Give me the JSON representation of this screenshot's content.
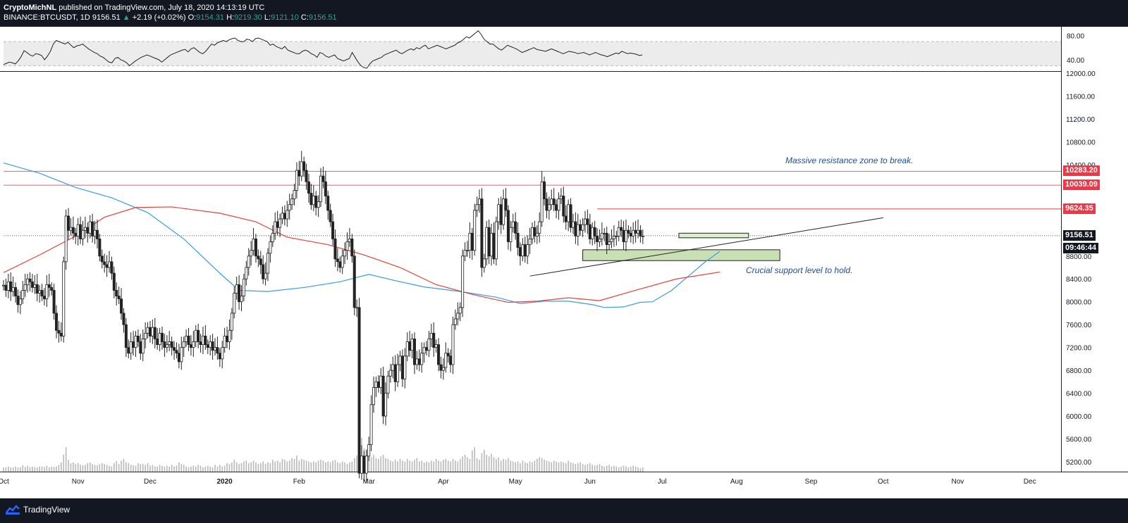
{
  "header": {
    "author": "CryptoMichNL",
    "published": " published on TradingView.com, July 18, 2020 14:13:19 UTC",
    "symbol": "BINANCE:BTCUSDT, 1D",
    "last": "9156.51",
    "change": "+2.19 (+0.02%)",
    "o_label": "O:",
    "o": "9154.31",
    "h_label": "H:",
    "h": "9219.30",
    "l_label": "L:",
    "l": "9121.10",
    "c_label": "C:",
    "c": "9156.51"
  },
  "footer": {
    "brand": "TradingView",
    "logo_icon": "tradingview-logo-icon"
  },
  "colors": {
    "bg_dark": "#131722",
    "up": "#26a69a",
    "ma_blue": "#3a9be8",
    "ma_red": "#e5423b",
    "resistance": "#f45b69",
    "support_zone": "#c8e0b4",
    "annotation": "#1f4e9c"
  },
  "chart_data": [
    {
      "type": "line",
      "title": "RSI",
      "y_ticks": [
        "80.00",
        "40.00"
      ],
      "ylim": [
        20,
        90
      ],
      "band": [
        30,
        70
      ],
      "values": [
        32,
        34,
        36,
        35,
        33,
        38,
        45,
        55,
        52,
        48,
        46,
        50,
        49,
        47,
        40,
        46,
        54,
        66,
        72,
        70,
        68,
        66,
        69,
        64,
        60,
        63,
        64,
        66,
        62,
        58,
        55,
        52,
        50,
        46,
        44,
        40,
        36,
        35,
        42,
        44,
        40,
        38,
        35,
        30,
        34,
        38,
        41,
        44,
        46,
        48,
        46,
        44,
        42,
        40,
        36,
        40,
        44,
        48,
        50,
        52,
        54,
        56,
        57,
        53,
        58,
        60,
        56,
        52,
        50,
        54,
        60,
        66,
        64,
        68,
        70,
        72,
        70,
        73,
        75,
        76,
        72,
        70,
        70,
        74,
        73,
        70,
        75,
        76,
        74,
        72,
        70,
        64,
        66,
        62,
        60,
        58,
        62,
        56,
        54,
        52,
        50,
        50,
        54,
        56,
        54,
        50,
        48,
        44,
        52,
        50,
        46,
        44,
        46,
        48,
        42,
        40,
        38,
        40,
        42,
        52,
        44,
        36,
        30,
        27,
        26,
        33,
        38,
        40,
        42,
        44,
        48,
        50,
        52,
        54,
        56,
        52,
        50,
        53,
        56,
        58,
        56,
        60,
        58,
        62,
        64,
        58,
        60,
        62,
        64,
        62,
        60,
        58,
        60,
        62,
        64,
        68,
        70,
        74,
        78,
        76,
        80,
        84,
        88,
        82,
        74,
        70,
        66,
        66,
        62,
        58,
        56,
        60,
        64,
        62,
        60,
        58,
        55,
        52,
        54,
        56,
        58,
        60,
        57,
        56,
        55,
        54,
        56,
        58,
        56,
        54,
        52,
        50,
        52,
        54,
        53,
        52,
        50,
        51,
        52,
        50,
        48,
        50,
        52,
        50,
        48,
        47,
        45,
        47,
        49,
        51,
        50,
        54,
        52,
        50,
        51,
        50,
        49,
        47,
        48
      ]
    },
    {
      "type": "candlestick",
      "symbol": "BINANCE:BTCUSDT",
      "interval": "1D",
      "x_tick_labels": [
        "Oct",
        "Nov",
        "Dec",
        "2020",
        "Feb",
        "Mar",
        "Apr",
        "May",
        "Jun",
        "Jul",
        "Aug",
        "Sep",
        "Oct",
        "Nov",
        "Dec"
      ],
      "x_tick_days": [
        0,
        31,
        61,
        92,
        123,
        152,
        183,
        213,
        244,
        274,
        305,
        336,
        366,
        397,
        427
      ],
      "x_range_days": [
        0,
        440
      ],
      "y_ticks": [
        "12000.00",
        "11600.00",
        "11200.00",
        "10800.00",
        "10400.00",
        "8800.00",
        "8400.00",
        "8000.00",
        "7600.00",
        "7200.00",
        "6800.00",
        "6400.00",
        "6000.00",
        "5600.00",
        "5200.00"
      ],
      "ylim": [
        5000,
        12200
      ],
      "closes": [
        8290,
        8200,
        8350,
        8180,
        8250,
        8100,
        7950,
        8050,
        8200,
        8300,
        8400,
        8350,
        8250,
        8300,
        8150,
        8200,
        8100,
        8050,
        8300,
        8250,
        8200,
        7800,
        7500,
        7450,
        7400,
        8700,
        9500,
        9250,
        9300,
        9200,
        9150,
        9350,
        9100,
        9250,
        9300,
        9200,
        9400,
        9150,
        9250,
        9100,
        8800,
        8700,
        8650,
        8600,
        8700,
        8500,
        8200,
        8100,
        8050,
        7800,
        7600,
        7200,
        7100,
        7300,
        7200,
        7400,
        7300,
        7100,
        7350,
        7450,
        7550,
        7400,
        7550,
        7350,
        7250,
        7450,
        7300,
        7200,
        7250,
        7300,
        7200,
        7150,
        7100,
        6950,
        7200,
        7300,
        7400,
        7250,
        7200,
        7300,
        7500,
        7300,
        7250,
        7400,
        7250,
        7200,
        7300,
        7150,
        7200,
        7100,
        7000,
        7200,
        7400,
        7300,
        7500,
        7800,
        8150,
        8300,
        8000,
        8100,
        8400,
        8600,
        8800,
        8900,
        9100,
        8800,
        8750,
        8650,
        8400,
        8500,
        8850,
        9050,
        9200,
        9400,
        9300,
        9450,
        9550,
        9450,
        9600,
        9700,
        9800,
        9950,
        10300,
        10200,
        10450,
        10300,
        10100,
        9900,
        9700,
        9850,
        9650,
        9750,
        10200,
        10100,
        9850,
        9600,
        9400,
        9100,
        8750,
        8700,
        8600,
        8800,
        8900,
        9050,
        9100,
        8800,
        7900,
        7900,
        5000,
        5300,
        5000,
        5300,
        5500,
        6200,
        6500,
        6600,
        6500,
        6700,
        6000,
        6400,
        6700,
        6800,
        6900,
        6600,
        6900,
        7050,
        6650,
        7050,
        7300,
        7150,
        7350,
        6900,
        7000,
        6900,
        7100,
        7200,
        7150,
        7350,
        7450,
        7200,
        7250,
        6900,
        6800,
        6850,
        7100,
        7050,
        6900,
        7600,
        7700,
        7800,
        7900,
        8800,
        8900,
        8900,
        9200,
        8900,
        9600,
        9700,
        9800,
        8600,
        8750,
        9300,
        8800,
        9200,
        8750,
        9400,
        9700,
        9350,
        9800,
        9600,
        9050,
        9300,
        9400,
        9200,
        8950,
        8800,
        9000,
        8800,
        9000,
        9100,
        9300,
        9150,
        9200,
        9400,
        10100,
        9800,
        9600,
        9700,
        9800,
        9700,
        9600,
        9800,
        9850,
        9500,
        9400,
        9700,
        9300,
        9400,
        9150,
        9350,
        9250,
        9350,
        9450,
        9350,
        9100,
        9300,
        9150,
        9050,
        9100,
        9200,
        9200,
        9000,
        9050,
        9100,
        9150,
        9150,
        9300,
        9250,
        9050,
        9250,
        9200,
        9150,
        9250,
        9200,
        9250,
        9150,
        9150
      ],
      "volume_rel": [
        0.1,
        0.1,
        0.12,
        0.1,
        0.1,
        0.12,
        0.1,
        0.1,
        0.15,
        0.11,
        0.14,
        0.1,
        0.12,
        0.11,
        0.1,
        0.12,
        0.12,
        0.11,
        0.14,
        0.1,
        0.12,
        0.11,
        0.12,
        0.16,
        0.22,
        0.4,
        0.58,
        0.28,
        0.2,
        0.22,
        0.18,
        0.2,
        0.16,
        0.15,
        0.16,
        0.2,
        0.22,
        0.18,
        0.16,
        0.15,
        0.18,
        0.2,
        0.18,
        0.16,
        0.14,
        0.12,
        0.2,
        0.25,
        0.18,
        0.26,
        0.3,
        0.22,
        0.2,
        0.16,
        0.15,
        0.14,
        0.2,
        0.18,
        0.18,
        0.16,
        0.2,
        0.14,
        0.16,
        0.12,
        0.12,
        0.16,
        0.14,
        0.12,
        0.14,
        0.12,
        0.16,
        0.12,
        0.14,
        0.22,
        0.18,
        0.16,
        0.12,
        0.1,
        0.12,
        0.14,
        0.12,
        0.16,
        0.14,
        0.1,
        0.12,
        0.14,
        0.12,
        0.1,
        0.16,
        0.12,
        0.16,
        0.12,
        0.14,
        0.2,
        0.18,
        0.22,
        0.28,
        0.22,
        0.18,
        0.2,
        0.24,
        0.26,
        0.2,
        0.22,
        0.26,
        0.22,
        0.18,
        0.2,
        0.24,
        0.18,
        0.22,
        0.2,
        0.28,
        0.24,
        0.26,
        0.22,
        0.3,
        0.28,
        0.24,
        0.26,
        0.32,
        0.3,
        0.38,
        0.26,
        0.3,
        0.28,
        0.26,
        0.24,
        0.22,
        0.24,
        0.22,
        0.26,
        0.28,
        0.26,
        0.22,
        0.24,
        0.22,
        0.26,
        0.28,
        0.22,
        0.2,
        0.24,
        0.22,
        0.18,
        0.22,
        0.24,
        0.32,
        0.38,
        1.0,
        0.8,
        0.55,
        0.5,
        0.45,
        0.35,
        0.4,
        0.32,
        0.3,
        0.36,
        0.4,
        0.32,
        0.3,
        0.26,
        0.24,
        0.28,
        0.24,
        0.3,
        0.26,
        0.24,
        0.3,
        0.26,
        0.24,
        0.28,
        0.32,
        0.24,
        0.26,
        0.22,
        0.24,
        0.22,
        0.26,
        0.24,
        0.3,
        0.26,
        0.24,
        0.28,
        0.3,
        0.26,
        0.24,
        0.3,
        0.26,
        0.24,
        0.3,
        0.36,
        0.4,
        0.34,
        0.3,
        0.5,
        0.58,
        0.32,
        0.28,
        0.44,
        0.52,
        0.4,
        0.36,
        0.42,
        0.34,
        0.3,
        0.34,
        0.26,
        0.3,
        0.28,
        0.32,
        0.26,
        0.24,
        0.22,
        0.24,
        0.2,
        0.26,
        0.22,
        0.2,
        0.24,
        0.22,
        0.26,
        0.3,
        0.34,
        0.32,
        0.28,
        0.26,
        0.24,
        0.22,
        0.26,
        0.24,
        0.22,
        0.24,
        0.22,
        0.2,
        0.26,
        0.22,
        0.2,
        0.18,
        0.2,
        0.22,
        0.18,
        0.16,
        0.18,
        0.2,
        0.16,
        0.14,
        0.16,
        0.18,
        0.14,
        0.12,
        0.14,
        0.16,
        0.12,
        0.14,
        0.12,
        0.1,
        0.12,
        0.14,
        0.12,
        0.1,
        0.12,
        0.14,
        0.12,
        0.1,
        0.08,
        0.1
      ],
      "ma_blue": {
        "color": "#3a9be8",
        "points": [
          [
            0,
            10430
          ],
          [
            15,
            10250
          ],
          [
            30,
            10000
          ],
          [
            45,
            9820
          ],
          [
            60,
            9560
          ],
          [
            75,
            9100
          ],
          [
            90,
            8500
          ],
          [
            98,
            8200
          ],
          [
            110,
            8180
          ],
          [
            125,
            8250
          ],
          [
            140,
            8350
          ],
          [
            152,
            8480
          ],
          [
            163,
            8370
          ],
          [
            175,
            8260
          ],
          [
            190,
            8180
          ],
          [
            205,
            8080
          ],
          [
            215,
            7970
          ],
          [
            225,
            8010
          ],
          [
            235,
            8010
          ],
          [
            245,
            7950
          ],
          [
            250,
            7900
          ],
          [
            258,
            7910
          ],
          [
            265,
            7990
          ],
          [
            270,
            8000
          ],
          [
            278,
            8200
          ],
          [
            285,
            8450
          ],
          [
            292,
            8700
          ],
          [
            298,
            8880
          ]
        ]
      },
      "ma_red": {
        "color": "#e5423b",
        "points": [
          [
            0,
            8510
          ],
          [
            15,
            8820
          ],
          [
            30,
            9150
          ],
          [
            42,
            9480
          ],
          [
            55,
            9650
          ],
          [
            70,
            9660
          ],
          [
            90,
            9550
          ],
          [
            105,
            9400
          ],
          [
            118,
            9130
          ],
          [
            135,
            9000
          ],
          [
            150,
            8820
          ],
          [
            165,
            8600
          ],
          [
            180,
            8300
          ],
          [
            195,
            8130
          ],
          [
            210,
            7990
          ],
          [
            222,
            8010
          ],
          [
            235,
            8070
          ],
          [
            248,
            8020
          ],
          [
            262,
            8190
          ],
          [
            280,
            8400
          ],
          [
            298,
            8520
          ]
        ]
      },
      "resistance_levels": [
        10283.2,
        10039.09,
        9624.35
      ],
      "price_labels": [
        "10283.20",
        "10039.09",
        "9624.35",
        "9156.51",
        "09:46:44"
      ],
      "last_price": 9156.51,
      "trendline": [
        [
          219,
          8450
        ],
        [
          366,
          9470
        ]
      ],
      "support_zone": {
        "days": [
          241,
          323
        ],
        "price": [
          8720,
          8910
        ]
      },
      "small_zone": {
        "days": [
          281,
          310
        ],
        "price": [
          9120,
          9200
        ]
      },
      "annotations": [
        "Massive resistance zone to break.",
        "Crucial support level to hold."
      ]
    }
  ]
}
